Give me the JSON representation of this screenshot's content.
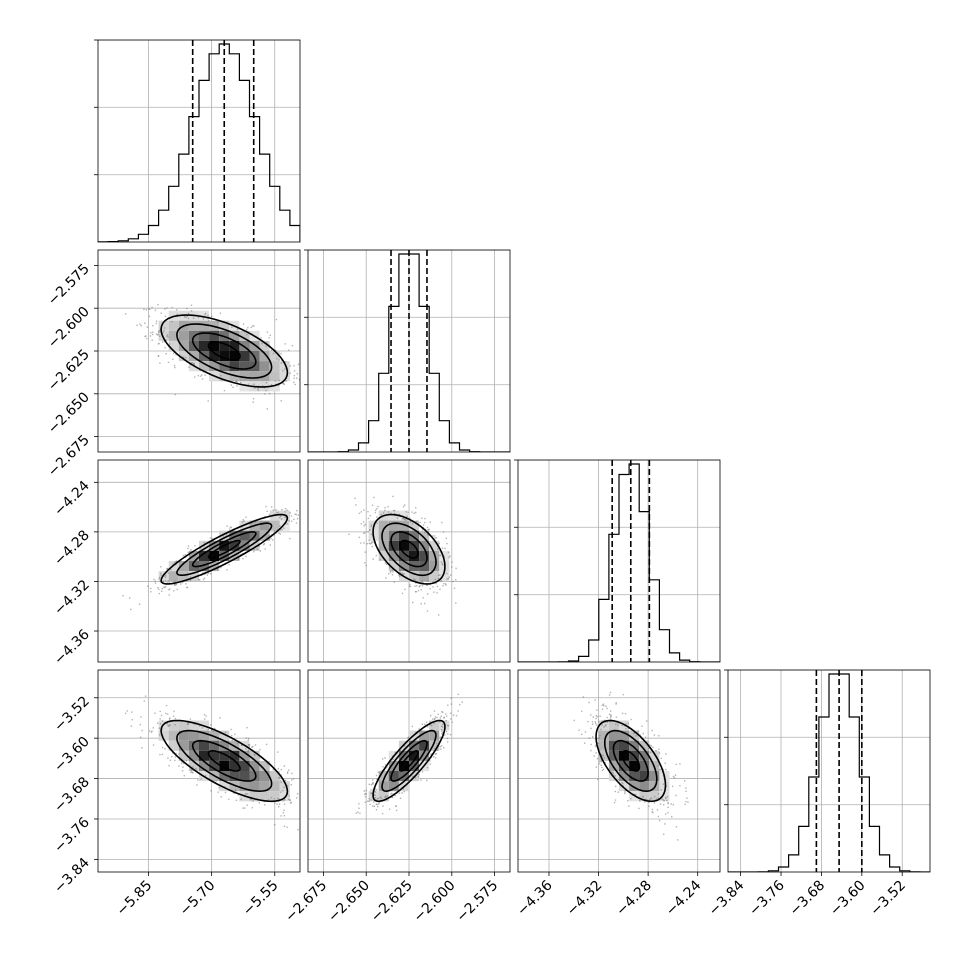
{
  "chart_data": {
    "type": "corner",
    "n_params": 4,
    "params": [
      {
        "index": 0,
        "range": [
          -5.97,
          -5.49
        ],
        "center": -5.67,
        "std": 0.075,
        "quantiles": [
          -5.745,
          -5.67,
          -5.6
        ],
        "ticks": [
          -5.85,
          -5.7,
          -5.55
        ],
        "tick_labels": [
          "−5.85",
          "−5.70",
          "−5.55"
        ]
      },
      {
        "index": 1,
        "range": [
          -2.684,
          -2.566
        ],
        "center": -2.625,
        "std": 0.0105,
        "quantiles": [
          -2.6355,
          -2.625,
          -2.6145
        ],
        "ticks": [
          -2.675,
          -2.65,
          -2.625,
          -2.6,
          -2.575
        ],
        "tick_labels": [
          "−2.675",
          "−2.650",
          "−2.625",
          "−2.600",
          "−2.575"
        ]
      },
      {
        "index": 2,
        "range": [
          -4.385,
          -4.222
        ],
        "center": -4.294,
        "std": 0.014,
        "quantiles": [
          -4.309,
          -4.294,
          -4.279
        ],
        "ticks": [
          -4.36,
          -4.32,
          -4.28,
          -4.24
        ],
        "tick_labels": [
          "−4.36",
          "−4.32",
          "−4.28",
          "−4.24"
        ]
      },
      {
        "index": 3,
        "range": [
          -3.865,
          -3.465
        ],
        "center": -3.645,
        "std": 0.04,
        "quantiles": [
          -3.69,
          -3.645,
          -3.6
        ],
        "ticks": [
          -3.84,
          -3.76,
          -3.68,
          -3.6,
          -3.52
        ],
        "tick_labels": [
          "−3.84",
          "−3.76",
          "−3.68",
          "−3.60",
          "−3.52"
        ]
      }
    ],
    "correlations": [
      [
        1,
        -0.6,
        0.9,
        -0.75
      ],
      [
        -0.6,
        1,
        -0.5,
        0.85
      ],
      [
        0.9,
        -0.5,
        1,
        -0.6
      ],
      [
        -0.75,
        0.85,
        -0.6,
        1
      ]
    ],
    "hist_bins": 20,
    "contour_levels": [
      "0.5-sigma",
      "1-sigma",
      "1.5-sigma",
      "2-sigma"
    ],
    "grid": true,
    "xlabel": "",
    "ylabel": "",
    "title": ""
  }
}
